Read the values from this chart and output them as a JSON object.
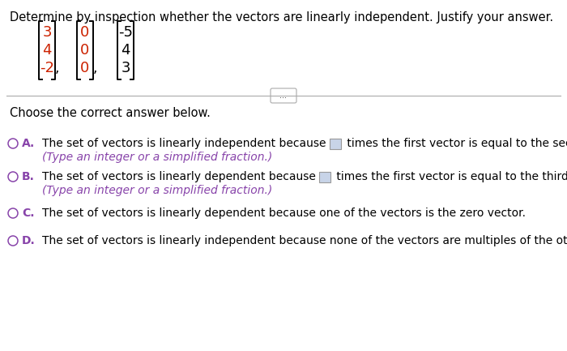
{
  "bg_color": "#ffffff",
  "title": "Determine by inspection whether the vectors are linearly independent. Justify your answer.",
  "title_color": "#000000",
  "title_fontsize": 10.5,
  "vec1": [
    "3",
    "4",
    "-2"
  ],
  "vec2": [
    "0",
    "0",
    "0"
  ],
  "vec3": [
    "-5",
    "4",
    "3"
  ],
  "vec1_color": "#cc2200",
  "vec2_color": "#cc2200",
  "vec3_color": "#000000",
  "bracket_color": "#000000",
  "separator_color": "#aaaaaa",
  "dots_text": "...",
  "choose_text": "Choose the correct answer below.",
  "choose_color": "#000000",
  "choose_fontsize": 10.5,
  "circle_color": "#8844aa",
  "letter_color": "#8844aa",
  "text_color": "#000000",
  "subtext_color": "#8844aa",
  "opt_fontsize": 10,
  "optA_line1_pre": "The set of vectors is linearly independent because ",
  "optA_line1_post": " times the first vector is equal to the second vector.",
  "optA_line2": "(Type an integer or a simplified fraction.)",
  "optB_line1_pre": "The set of vectors is linearly dependent because ",
  "optB_line1_post": " times the first vector is equal to the third vector.",
  "optB_line2": "(Type an integer or a simplified fraction.)",
  "optC_text": "The set of vectors is linearly dependent because one of the vectors is the zero vector.",
  "optD_text": "The set of vectors is linearly independent because none of the vectors are multiples of the other vectors."
}
